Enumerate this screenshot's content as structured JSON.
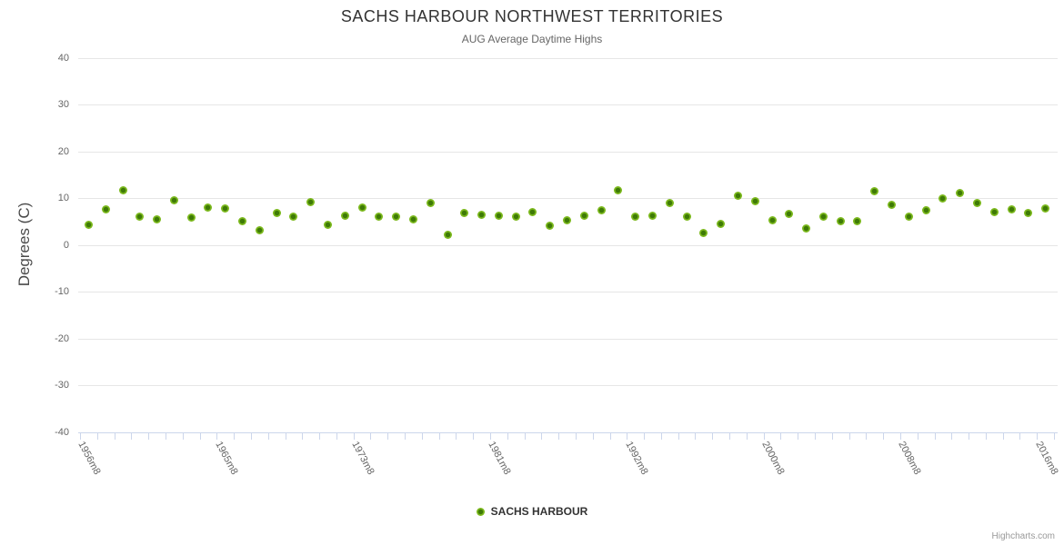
{
  "chart": {
    "title": "SACHS HARBOUR NORTHWEST TERRITORIES",
    "subtitle": "AUG Average Daytime Highs",
    "legend_label": "SACHS HARBOUR",
    "credits": "Highcharts.com"
  },
  "colors": {
    "series_outer": "#7cb91d",
    "series_core": "#3e7a06",
    "gridline": "#e6e6e6",
    "axis_line": "#ccd6eb",
    "title_text": "#333333",
    "subtitle_text": "#666666",
    "tick_label": "#666666",
    "credits_text": "#999999"
  },
  "chart_data": {
    "type": "scatter",
    "title": "SACHS HARBOUR NORTHWEST TERRITORIES",
    "subtitle": "AUG Average Daytime Highs",
    "xlabel": "",
    "ylabel": "Degrees (C)",
    "ylim": [
      -40,
      40
    ],
    "yticks": [
      40,
      30,
      20,
      10,
      0,
      -10,
      -20,
      -30,
      -40
    ],
    "grid": true,
    "legend_position": "bottom-center",
    "x_label_step": 8,
    "visible_x_labels": [
      "1956m8",
      "1965m8",
      "1973m8",
      "1981m8",
      "1992m8",
      "2000m8",
      "2008m8",
      "2016m8"
    ],
    "categories": [
      "1956m8",
      "1958m8",
      "1959m8",
      "1960m8",
      "1961m8",
      "1962m8",
      "1963m8",
      "1964m8",
      "1965m8",
      "1966m8",
      "1967m8",
      "1968m8",
      "1969m8",
      "1970m8",
      "1971m8",
      "1972m8",
      "1973m8",
      "1974m8",
      "1975m8",
      "1976m8",
      "1977m8",
      "1978m8",
      "1979m8",
      "1980m8",
      "1981m8",
      "1982m8",
      "1983m8",
      "1987m8",
      "1988m8",
      "1989m8",
      "1990m8",
      "1991m8",
      "1992m8",
      "1993m8",
      "1994m8",
      "1995m8",
      "1996m8",
      "1997m8",
      "1998m8",
      "1999m8",
      "2000m8",
      "2001m8",
      "2002m8",
      "2003m8",
      "2004m8",
      "2005m8",
      "2006m8",
      "2007m8",
      "2008m8",
      "2009m8",
      "2010m8",
      "2011m8",
      "2012m8",
      "2013m8",
      "2014m8",
      "2015m8",
      "2016m8"
    ],
    "series": [
      {
        "name": "SACHS HARBOUR",
        "values": [
          4.2,
          7.5,
          11.7,
          6.0,
          5.4,
          9.5,
          5.8,
          7.9,
          7.7,
          5.0,
          3.1,
          6.9,
          6.1,
          9.1,
          4.3,
          6.3,
          7.9,
          6.0,
          6.1,
          5.4,
          8.9,
          2.2,
          6.9,
          6.5,
          6.3,
          6.1,
          7.0,
          4.0,
          5.2,
          6.3,
          7.4,
          11.7,
          6.1,
          6.3,
          8.9,
          6.1,
          2.5,
          4.5,
          10.5,
          9.4,
          5.2,
          6.6,
          3.5,
          6.0,
          5.0,
          5.0,
          11.4,
          8.5,
          6.0,
          7.4,
          9.9,
          11.1,
          8.9,
          7.0,
          7.6,
          6.9,
          7.7
        ]
      }
    ]
  }
}
